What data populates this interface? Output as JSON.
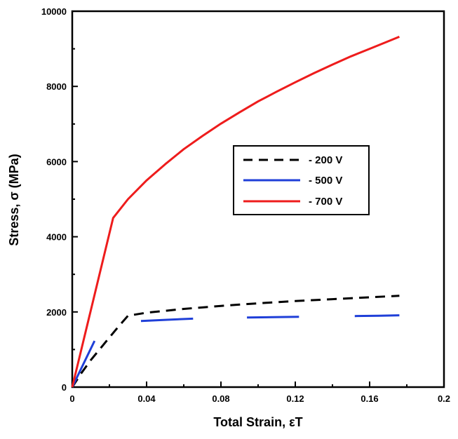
{
  "chart_data": {
    "type": "line",
    "xlabel": "Total Strain, εT",
    "ylabel": "Stress, σ (MPa)",
    "xlim": [
      0,
      0.2
    ],
    "ylim": [
      0,
      10000
    ],
    "x_ticks": [
      0,
      0.04,
      0.08,
      0.12,
      0.16,
      0.2
    ],
    "x_tick_labels": [
      "0",
      "0.04",
      "0.08",
      "0.12",
      "0.16",
      "0.2"
    ],
    "y_ticks": [
      0,
      2000,
      4000,
      6000,
      8000,
      10000
    ],
    "y_tick_labels": [
      "0",
      "2000",
      "4000",
      "6000",
      "8000",
      "10000"
    ],
    "grid": false,
    "legend_position": "center-right",
    "series": [
      {
        "name": "- 200 V",
        "color": "#000000",
        "style": "dashed",
        "points": [
          [
            0,
            0
          ],
          [
            0.005,
            380
          ],
          [
            0.01,
            720
          ],
          [
            0.015,
            1020
          ],
          [
            0.02,
            1320
          ],
          [
            0.025,
            1620
          ],
          [
            0.03,
            1900
          ],
          [
            0.04,
            1980
          ],
          [
            0.06,
            2080
          ],
          [
            0.08,
            2160
          ],
          [
            0.1,
            2230
          ],
          [
            0.12,
            2290
          ],
          [
            0.14,
            2340
          ],
          [
            0.16,
            2390
          ],
          [
            0.176,
            2430
          ]
        ]
      },
      {
        "name": "- 500 V",
        "color": "#1f3fd8",
        "style": "solid",
        "segments": [
          [
            [
              0,
              0
            ],
            [
              0.012,
              1230
            ]
          ],
          [
            [
              0.037,
              1760
            ],
            [
              0.05,
              1790
            ],
            [
              0.065,
              1820
            ]
          ],
          [
            [
              0.094,
              1850
            ],
            [
              0.108,
              1860
            ],
            [
              0.122,
              1870
            ]
          ],
          [
            [
              0.152,
              1890
            ],
            [
              0.165,
              1900
            ],
            [
              0.176,
              1910
            ]
          ]
        ]
      },
      {
        "name": "- 700 V",
        "color": "#ee1c1c",
        "style": "solid",
        "points": [
          [
            0,
            0
          ],
          [
            0.022,
            4500
          ],
          [
            0.03,
            5000
          ],
          [
            0.04,
            5500
          ],
          [
            0.05,
            5930
          ],
          [
            0.06,
            6330
          ],
          [
            0.07,
            6680
          ],
          [
            0.08,
            7010
          ],
          [
            0.09,
            7310
          ],
          [
            0.1,
            7600
          ],
          [
            0.11,
            7860
          ],
          [
            0.12,
            8110
          ],
          [
            0.13,
            8350
          ],
          [
            0.14,
            8580
          ],
          [
            0.15,
            8800
          ],
          [
            0.16,
            9000
          ],
          [
            0.17,
            9200
          ],
          [
            0.176,
            9320
          ]
        ]
      }
    ]
  }
}
